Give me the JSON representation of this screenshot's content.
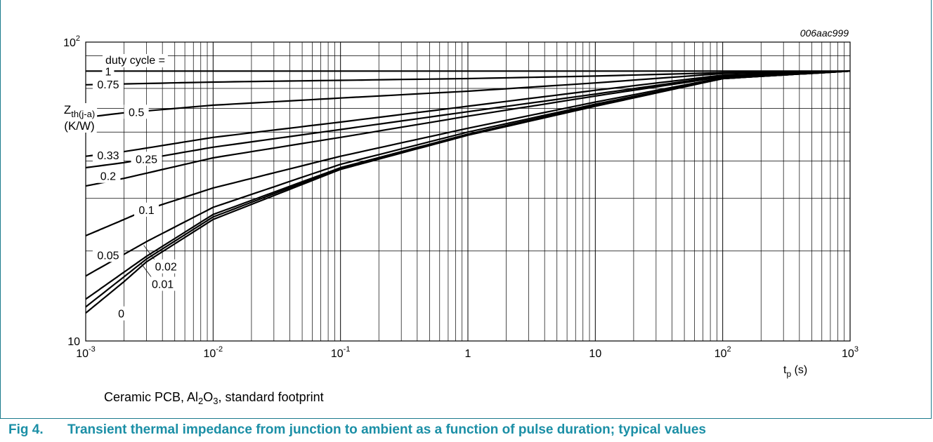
{
  "chart_data": {
    "type": "line",
    "code": "006aac999",
    "x_scale": "log",
    "y_scale": "log",
    "xlim": [
      0.001,
      1000
    ],
    "ylim": [
      10,
      100
    ],
    "x_ticks": [
      {
        "value": 0.001,
        "base": "10",
        "exp": "-3"
      },
      {
        "value": 0.01,
        "base": "10",
        "exp": "-2"
      },
      {
        "value": 0.1,
        "base": "10",
        "exp": "-1"
      },
      {
        "value": 1,
        "base": "1",
        "exp": ""
      },
      {
        "value": 10,
        "base": "10",
        "exp": ""
      },
      {
        "value": 100,
        "base": "10",
        "exp": "2"
      },
      {
        "value": 1000,
        "base": "10",
        "exp": "3"
      }
    ],
    "y_ticks": [
      {
        "value": 10,
        "base": "10",
        "exp": ""
      },
      {
        "value": 100,
        "base": "10",
        "exp": "2"
      }
    ],
    "ylabel": {
      "main": "Z",
      "sub": "th(j-a)",
      "unit": "(K/W)"
    },
    "xlabel": {
      "main": "t",
      "sub": "p",
      "unit": " (s)"
    },
    "grid": true,
    "legend_title": "duty cycle =",
    "series": [
      {
        "label": "1",
        "x": [
          0.001,
          0.01,
          0.1,
          1,
          10,
          100,
          1000
        ],
        "y": [
          80,
          80,
          80,
          80,
          80,
          80,
          80
        ]
      },
      {
        "label": "0.75",
        "x": [
          0.001,
          0.01,
          0.1,
          1,
          10,
          100,
          1000
        ],
        "y": [
          72,
          73.5,
          74.5,
          75.5,
          77,
          79,
          80
        ]
      },
      {
        "label": "0.5",
        "x": [
          0.001,
          0.002,
          0.01,
          0.1,
          1,
          10,
          100,
          1000
        ],
        "y": [
          56,
          58,
          61.5,
          65,
          68.5,
          73,
          78.5,
          80
        ]
      },
      {
        "label": "0.33",
        "x": [
          0.001,
          0.002,
          0.01,
          0.1,
          1,
          10,
          100,
          1000
        ],
        "y": [
          41.5,
          43,
          48,
          54,
          61,
          69,
          77.5,
          80
        ]
      },
      {
        "label": "0.25",
        "x": [
          0.001,
          0.002,
          0.01,
          0.1,
          1,
          10,
          100,
          1000
        ],
        "y": [
          38,
          39.5,
          44.5,
          51,
          58.5,
          67,
          77,
          80
        ]
      },
      {
        "label": "0.2",
        "x": [
          0.001,
          0.002,
          0.01,
          0.1,
          1,
          10,
          100,
          1000
        ],
        "y": [
          33,
          35,
          41,
          48,
          56.5,
          66,
          76.5,
          80
        ]
      },
      {
        "label": "0.1",
        "x": [
          0.001,
          0.002,
          0.003,
          0.01,
          0.1,
          1,
          10,
          100,
          1000
        ],
        "y": [
          22.5,
          25.5,
          27.5,
          32.5,
          41.5,
          51.5,
          63,
          76,
          80
        ]
      },
      {
        "label": "0.05",
        "x": [
          0.001,
          0.002,
          0.003,
          0.01,
          0.1,
          1,
          10,
          100,
          1000
        ],
        "y": [
          16.5,
          19.5,
          21.5,
          28,
          39,
          50,
          62,
          75.5,
          80
        ]
      },
      {
        "label": "0.02",
        "x": [
          0.001,
          0.002,
          0.003,
          0.01,
          0.1,
          1,
          10,
          100,
          1000
        ],
        "y": [
          13.8,
          17,
          19.2,
          26.5,
          38,
          49.2,
          61.5,
          75.5,
          80
        ]
      },
      {
        "label": "0.01",
        "x": [
          0.001,
          0.002,
          0.003,
          0.01,
          0.1,
          1,
          10,
          100,
          1000
        ],
        "y": [
          13,
          16.4,
          18.8,
          26,
          37.8,
          49,
          61.3,
          75.5,
          80
        ]
      },
      {
        "label": "0",
        "x": [
          0.001,
          0.002,
          0.003,
          0.01,
          0.1,
          1,
          10,
          100,
          1000
        ],
        "y": [
          12.4,
          15.8,
          18.4,
          25.5,
          37.5,
          48.8,
          61,
          75.5,
          80
        ]
      }
    ]
  },
  "note": {
    "text1": "Ceramic PCB, Al",
    "sub": "2",
    "text2": "O",
    "sub2": "3",
    "text3": ", standard footprint"
  },
  "caption": {
    "number": "Fig 4.",
    "text": "Transient thermal impedance from junction to ambient as a function of pulse duration; typical values"
  }
}
